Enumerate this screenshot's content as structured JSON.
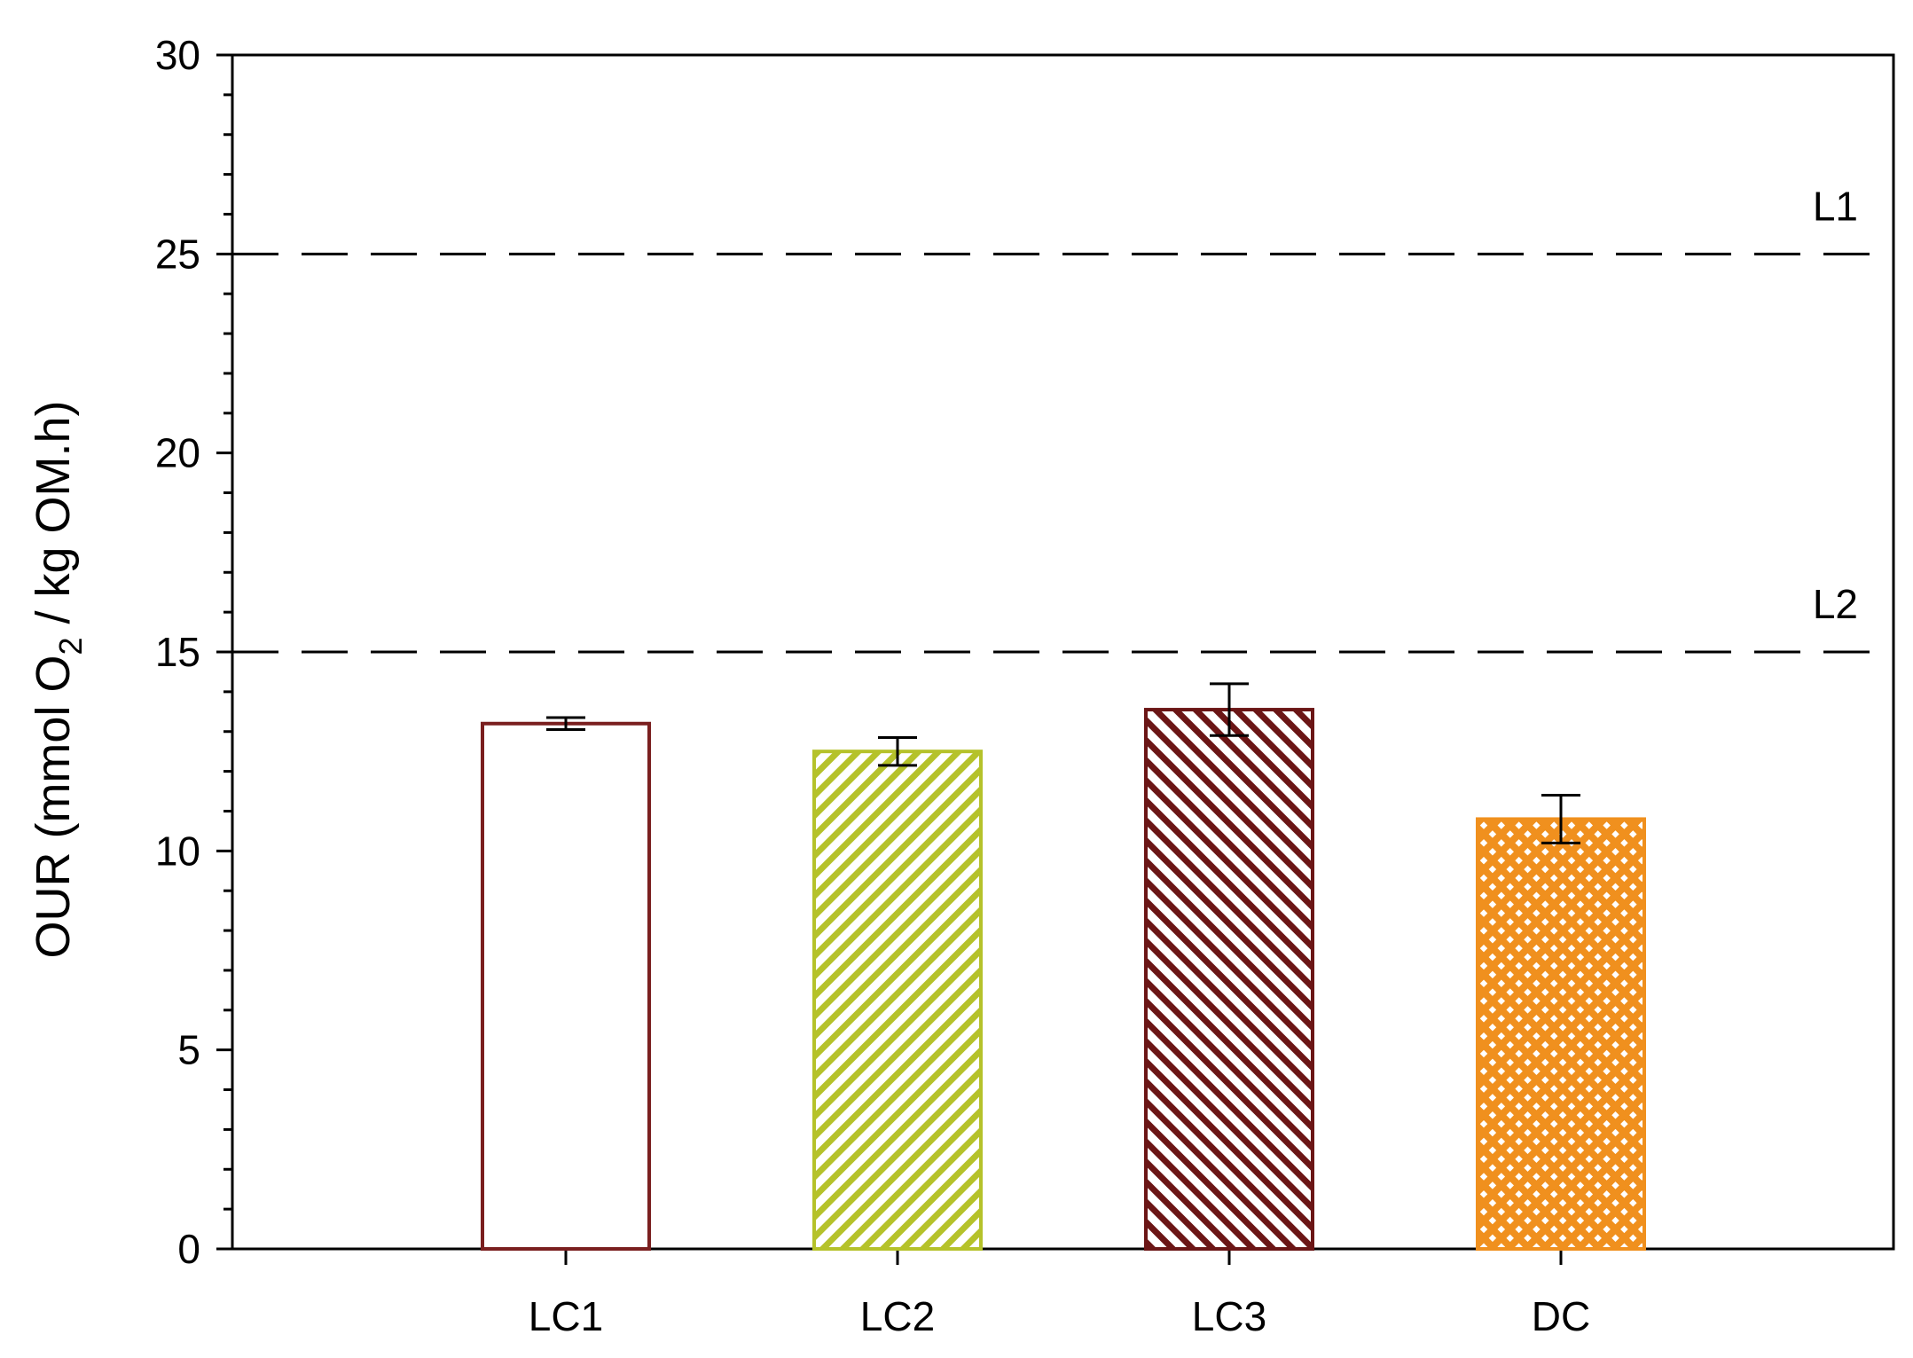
{
  "chart_data": {
    "type": "bar",
    "categories": [
      "LC1",
      "LC2",
      "LC3",
      "DC"
    ],
    "values": [
      13.2,
      12.5,
      13.55,
      10.8
    ],
    "errors": [
      0.15,
      0.35,
      0.65,
      0.6
    ],
    "ylabel": {
      "prefix": "OUR (mmol O",
      "subscript": "2",
      "suffix": " / kg OM.h)"
    },
    "ylim": [
      0,
      30
    ],
    "yticks": [
      "0",
      "5",
      "10",
      "15",
      "20",
      "25",
      "30"
    ],
    "ytick_values": [
      0,
      5,
      10,
      15,
      20,
      25,
      30
    ],
    "reference_lines": [
      {
        "label": "L1",
        "value": 25
      },
      {
        "label": "L2",
        "value": 15
      }
    ],
    "bar_styles": [
      {
        "pattern": "none",
        "stroke": "#7a1f1f",
        "fill": "#ffffff"
      },
      {
        "pattern": "diagonal-up",
        "stroke": "#b5c22a",
        "fill": "#ffffff"
      },
      {
        "pattern": "diagonal-down",
        "stroke": "#6b1616",
        "fill": "#ffffff"
      },
      {
        "pattern": "crosshatch",
        "stroke": "#f0901e",
        "fill": "#ffffff"
      }
    ],
    "grid": false,
    "legend": "none"
  }
}
